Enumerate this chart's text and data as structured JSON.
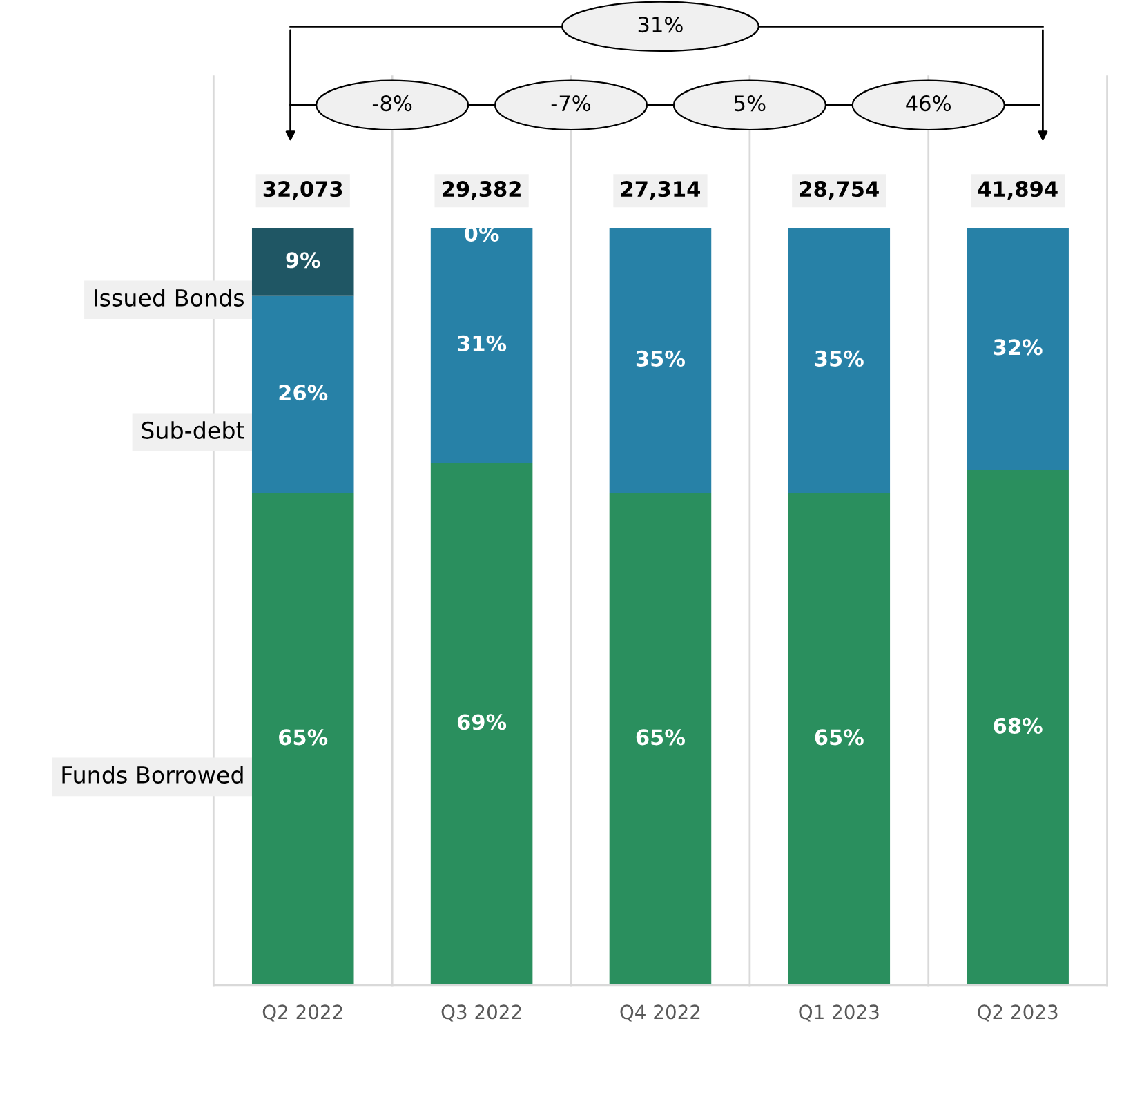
{
  "chart_data": {
    "type": "bar",
    "stacked": true,
    "categories": [
      "Q2 2022",
      "Q3 2022",
      "Q4 2022",
      "Q1 2023",
      "Q2 2023"
    ],
    "series": [
      {
        "name": "Funds Borrowed",
        "color": "#2a8f5e",
        "values": [
          65,
          69,
          65,
          65,
          68
        ],
        "value_labels": [
          "65%",
          "69%",
          "65%",
          "65%",
          "68%"
        ]
      },
      {
        "name": "Sub-debt",
        "color": "#2781a7",
        "values": [
          26,
          31,
          35,
          35,
          32
        ],
        "value_labels": [
          "26%",
          "31%",
          "35%",
          "35%",
          "32%"
        ]
      },
      {
        "name": "Issued Bonds",
        "color": "#1f5664",
        "values": [
          9,
          0,
          0,
          0,
          0
        ],
        "value_labels": [
          "9%",
          "0%",
          null,
          null,
          null
        ]
      }
    ],
    "annotations": [
      "32,073",
      "29,382",
      "27,314",
      "28,754",
      "41,894",
      "31%",
      "-8%",
      "-7%",
      "5%",
      "46%"
    ],
    "grid": "x",
    "tick_labels": "x"
  }
}
